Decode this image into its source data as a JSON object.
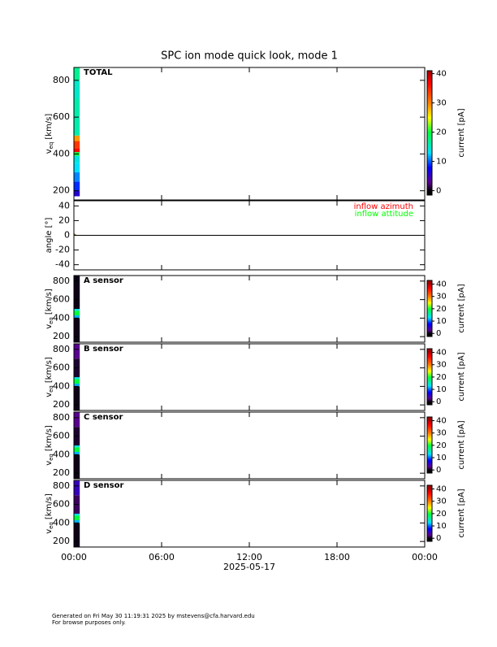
{
  "chart_data": [
    {
      "type": "spectrogram",
      "title": "SPC ion mode quick look, mode 1",
      "label": "TOTAL",
      "y_label": "v",
      "y_label_sub": "eq",
      "y_label_unit": "[km/s]",
      "ylim": [
        150,
        870
      ],
      "yticks": [
        200,
        400,
        600,
        800
      ],
      "time_bins": [
        0,
        0.4
      ],
      "velocity_bins": [
        170,
        200,
        250,
        300,
        350,
        390,
        410,
        430,
        470,
        500,
        600,
        700,
        800,
        870
      ],
      "values": [
        6,
        9,
        11,
        13,
        14,
        20,
        37,
        34,
        29,
        16,
        16,
        15,
        17
      ],
      "colorbar": {
        "label": "current [pA]",
        "lim": [
          -1.5,
          41
        ],
        "ticks": [
          0,
          10,
          20,
          30,
          40
        ]
      }
    },
    {
      "type": "line",
      "y_label": "angle [°]",
      "ylim": [
        -47,
        47
      ],
      "yticks": [
        -40,
        -20,
        0,
        20,
        40
      ],
      "hline": 0,
      "x": [
        0,
        0.05,
        0.1,
        0.15
      ],
      "series": [
        {
          "name": "inflow azimuth",
          "color": "#ff0000",
          "values": [
            2,
            1,
            0.5,
            0
          ]
        },
        {
          "name": "inflow attitude",
          "color": "#00ff00",
          "values": [
            0,
            0.5,
            0,
            0
          ]
        }
      ]
    },
    {
      "type": "spectrogram",
      "label": "A sensor",
      "y_label": "v",
      "y_label_sub": "eq",
      "y_label_unit": "[km/s]",
      "ylim": [
        140,
        860
      ],
      "yticks": [
        200,
        400,
        600,
        800
      ],
      "time_bins": [
        0,
        0.4
      ],
      "velocity_bins": [
        140,
        400,
        430,
        480,
        500,
        860
      ],
      "values": [
        0.5,
        12,
        20,
        14,
        0.5
      ],
      "colorbar": {
        "label": "current [pA]",
        "lim": [
          -2.5,
          43
        ],
        "ticks": [
          0,
          10,
          20,
          30,
          40
        ]
      }
    },
    {
      "type": "spectrogram",
      "label": "B sensor",
      "y_label": "v",
      "y_label_sub": "eq",
      "y_label_unit": "[km/s]",
      "ylim": [
        140,
        860
      ],
      "yticks": [
        200,
        400,
        600,
        800
      ],
      "time_bins": [
        0,
        0.4
      ],
      "velocity_bins": [
        140,
        400,
        430,
        480,
        500,
        700,
        860
      ],
      "values": [
        0.5,
        12,
        20,
        14,
        1,
        3
      ],
      "colorbar": {
        "label": "current [pA]",
        "lim": [
          -2.5,
          43
        ],
        "ticks": [
          0,
          10,
          20,
          30,
          40
        ]
      }
    },
    {
      "type": "spectrogram",
      "label": "C sensor",
      "y_label": "v",
      "y_label_sub": "eq",
      "y_label_unit": "[km/s]",
      "ylim": [
        140,
        860
      ],
      "yticks": [
        200,
        400,
        600,
        800
      ],
      "time_bins": [
        0,
        0.4
      ],
      "velocity_bins": [
        140,
        400,
        430,
        480,
        500,
        700,
        860
      ],
      "values": [
        0.5,
        12,
        20,
        14,
        1,
        3
      ],
      "colorbar": {
        "label": "current [pA]",
        "lim": [
          -2.5,
          43
        ],
        "ticks": [
          0,
          10,
          20,
          30,
          40
        ]
      }
    },
    {
      "type": "spectrogram",
      "label": "D sensor",
      "y_label": "v",
      "y_label_sub": "eq",
      "y_label_unit": "[km/s]",
      "ylim": [
        140,
        860
      ],
      "yticks": [
        200,
        400,
        600,
        800
      ],
      "time_bins": [
        0,
        0.4
      ],
      "velocity_bins": [
        140,
        400,
        430,
        480,
        500,
        700,
        860
      ],
      "values": [
        0.5,
        12,
        20,
        14,
        2,
        5
      ],
      "colorbar": {
        "label": "current [pA]",
        "lim": [
          -2.5,
          43
        ],
        "ticks": [
          0,
          10,
          20,
          30,
          40
        ]
      },
      "xlim": [
        0,
        24
      ],
      "xticks": [
        {
          "value": 0,
          "label": "00:00"
        },
        {
          "value": 6,
          "label": "06:00"
        },
        {
          "value": 12,
          "label": "12:00"
        },
        {
          "value": 18,
          "label": "18:00"
        },
        {
          "value": 24,
          "label": "00:00"
        }
      ],
      "x_label": "2025-05-17"
    }
  ],
  "colormap": [
    [
      0,
      "#000000"
    ],
    [
      3,
      "#5a0090"
    ],
    [
      8,
      "#0000ff"
    ],
    [
      13,
      "#00e0ff"
    ],
    [
      20,
      "#00ff40"
    ],
    [
      25,
      "#ffff00"
    ],
    [
      30,
      "#ff8000"
    ],
    [
      37,
      "#ff0000"
    ],
    [
      41,
      "#a00000"
    ]
  ],
  "footer": {
    "line1": "Generated on Fri May 30 11:19:31 2025 by mstevens@cfa.harvard.edu",
    "line2": "For browse purposes only."
  }
}
